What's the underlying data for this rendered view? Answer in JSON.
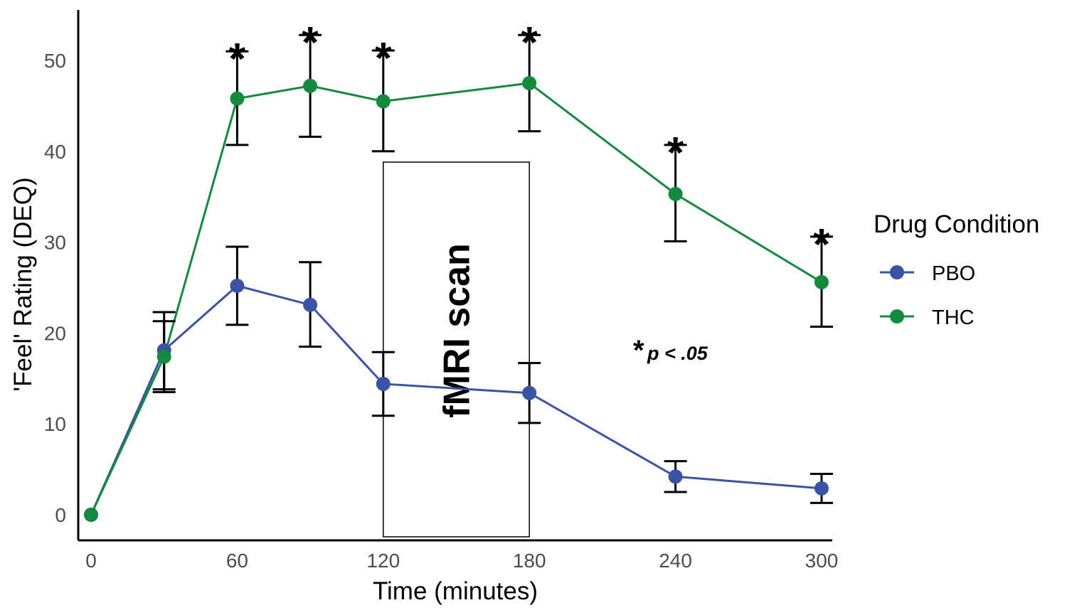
{
  "chart_data": {
    "type": "line",
    "xlabel": "Time (minutes)",
    "ylabel": "'Feel' Rating (DEQ)",
    "xlim": [
      0,
      300
    ],
    "ylim": [
      0,
      52
    ],
    "x_ticks": [
      0,
      60,
      120,
      180,
      240,
      300
    ],
    "y_ticks": [
      0,
      10,
      20,
      30,
      40,
      50
    ],
    "grid": false,
    "legend": {
      "title": "Drug Condition",
      "placement": "right",
      "entries": [
        "PBO",
        "THC"
      ]
    },
    "x": [
      0,
      30,
      60,
      90,
      120,
      180,
      240,
      300
    ],
    "series": [
      {
        "name": "PBO",
        "color": "#3a53a4",
        "values": [
          0,
          18.1,
          25.2,
          23.1,
          14.4,
          13.4,
          4.2,
          2.9
        ],
        "error_low": [
          0,
          13.8,
          20.9,
          18.5,
          10.9,
          10.1,
          2.5,
          1.3
        ],
        "error_high": [
          0,
          22.3,
          29.5,
          27.8,
          17.9,
          16.7,
          5.9,
          4.5
        ]
      },
      {
        "name": "THC",
        "color": "#138a3e",
        "values": [
          0,
          17.4,
          45.8,
          47.2,
          45.5,
          47.5,
          35.3,
          25.6
        ],
        "error_low": [
          0,
          13.5,
          40.7,
          41.6,
          40.0,
          42.2,
          30.1,
          20.7
        ],
        "error_high": [
          0,
          21.3,
          51.0,
          52.8,
          51.1,
          52.8,
          40.7,
          30.6
        ]
      }
    ],
    "significance_marker": "*",
    "significant_x": [
      60,
      90,
      120,
      180,
      240,
      300
    ],
    "annotations": {
      "scan_box_label": "fMRI scan",
      "scan_box_range": [
        120,
        180
      ],
      "p_note_star": "*",
      "p_note_text": "p < .05"
    }
  }
}
